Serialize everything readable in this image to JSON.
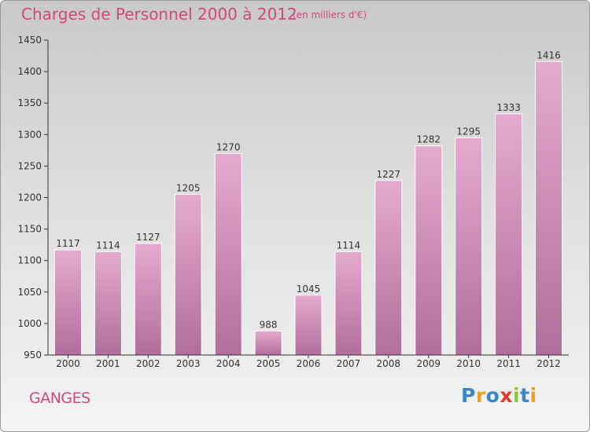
{
  "title": "Charges de Personnel 2000 à 2012",
  "subtitle": "(en milliers d'€)",
  "commune": "GANGES",
  "logo": {
    "text": "Proxiti",
    "letters": [
      {
        "char": "P",
        "color": "#3a86c8"
      },
      {
        "char": "r",
        "color": "#f0a020"
      },
      {
        "char": "o",
        "color": "#3a86c8"
      },
      {
        "char": "x",
        "color": "#e03a2a"
      },
      {
        "char": "i",
        "color": "#8cc63e"
      },
      {
        "char": "t",
        "color": "#3a86c8"
      },
      {
        "char": "i",
        "color": "#f0a020"
      }
    ]
  },
  "colors": {
    "title": "#d3477d",
    "bar_top": "#e6aacf",
    "bar_bottom": "#b16e9a"
  },
  "chart_data": {
    "type": "bar",
    "categories": [
      "2000",
      "2001",
      "2002",
      "2003",
      "2004",
      "2005",
      "2006",
      "2007",
      "2008",
      "2009",
      "2010",
      "2011",
      "2012"
    ],
    "values": [
      1117,
      1114,
      1127,
      1205,
      1270,
      988,
      1045,
      1114,
      1227,
      1282,
      1295,
      1333,
      1416
    ],
    "value_labels": [
      "1117",
      "1114",
      "1127",
      "1205",
      "1270",
      "988",
      "1045",
      "1114",
      "1227",
      "1282",
      "1295",
      "1333",
      "1416"
    ],
    "ylim": [
      950,
      1450
    ],
    "yticks": [
      950,
      1000,
      1050,
      1100,
      1150,
      1200,
      1250,
      1300,
      1350,
      1400,
      1450
    ],
    "grid": false,
    "title": "Charges de Personnel 2000 à 2012",
    "xlabel": "",
    "ylabel": ""
  }
}
